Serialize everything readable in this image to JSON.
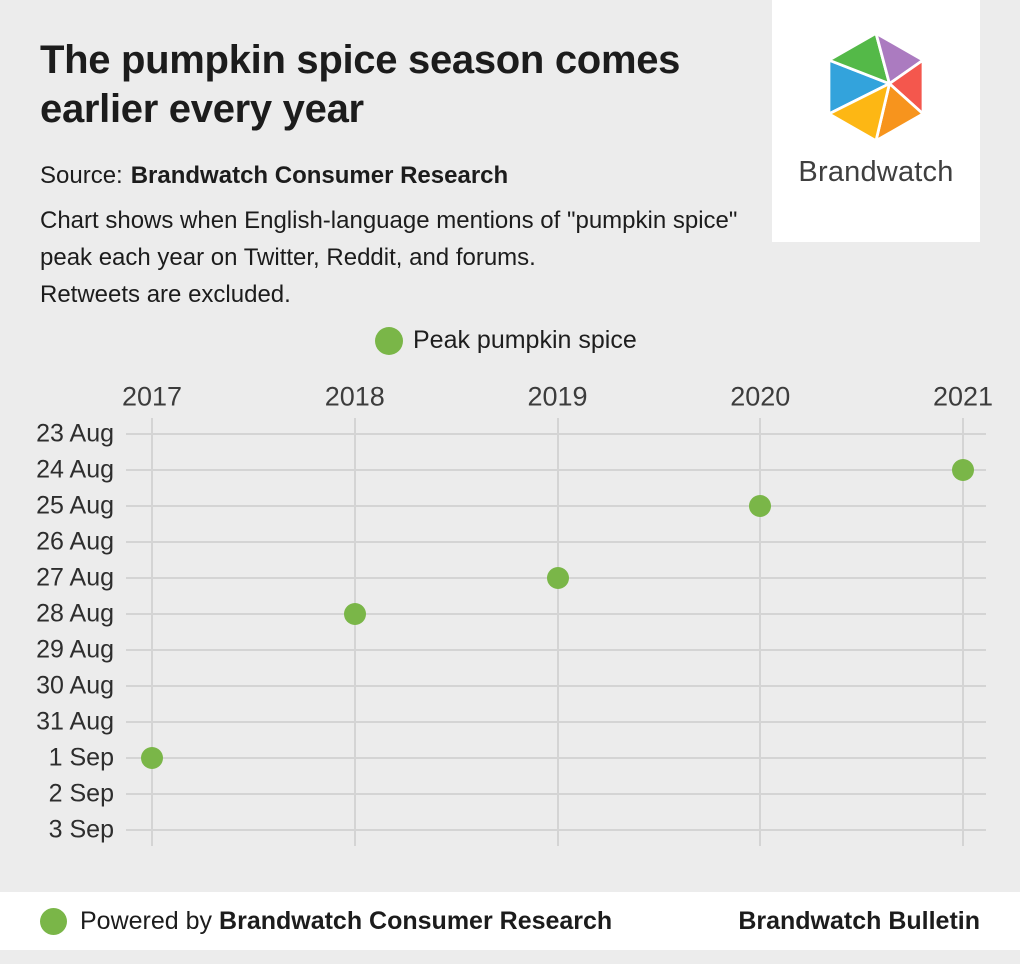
{
  "header": {
    "title": "The pumpkin spice season comes earlier every year",
    "source_label": "Source:",
    "source_value": "Brandwatch Consumer Research",
    "description_lines": [
      "Chart shows when English-language mentions of \"pumpkin spice\"",
      "peak each year on Twitter, Reddit, and forums.",
      "Retweets are excluded."
    ]
  },
  "logo": {
    "brand_name": "Brandwatch",
    "colors": {
      "blue": "#33a3dc",
      "green": "#54b948",
      "purple": "#ab7bc0",
      "red": "#f4574d",
      "orange": "#f7941d",
      "yellow": "#fdb714"
    }
  },
  "legend": {
    "label": "Peak pumpkin spice",
    "marker_color": "#7ab648"
  },
  "chart_data": {
    "type": "scatter",
    "x_labels": [
      "2017",
      "2018",
      "2019",
      "2020",
      "2021"
    ],
    "y_labels": [
      "23 Aug",
      "24 Aug",
      "25 Aug",
      "26 Aug",
      "27 Aug",
      "28 Aug",
      "29 Aug",
      "30 Aug",
      "31 Aug",
      "1 Sep",
      "2 Sep",
      "3 Sep"
    ],
    "points": [
      {
        "year": "2017",
        "date": "1 Sep"
      },
      {
        "year": "2018",
        "date": "28 Aug"
      },
      {
        "year": "2019",
        "date": "27 Aug"
      },
      {
        "year": "2020",
        "date": "25 Aug"
      },
      {
        "year": "2021",
        "date": "24 Aug"
      }
    ],
    "series": [
      {
        "name": "Peak pumpkin spice",
        "values": [
          "1 Sep",
          "28 Aug",
          "27 Aug",
          "25 Aug",
          "24 Aug"
        ]
      }
    ],
    "title": "The pumpkin spice season comes earlier every year",
    "xlabel": "",
    "ylabel": "",
    "x_axis_position": "top",
    "grid": true,
    "legend_position": "top-center",
    "marker_color": "#7ab648",
    "grid_color": "#d4d4d4",
    "background_color": "#ececec"
  },
  "footer": {
    "powered_by_label": "Powered by",
    "powered_by_value": "Brandwatch Consumer Research",
    "right_text": "Brandwatch Bulletin",
    "dot_color": "#7ab648"
  }
}
